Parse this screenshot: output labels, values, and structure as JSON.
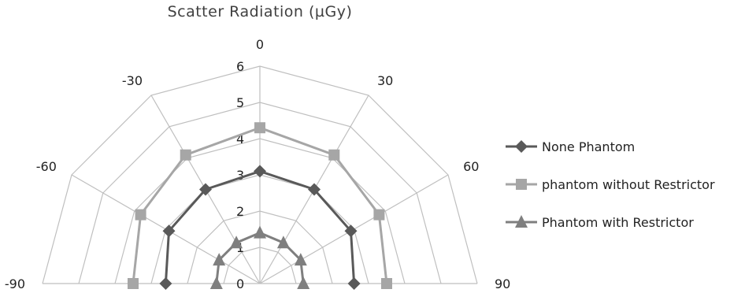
{
  "chart_data": {
    "type": "radar",
    "title": "Scatter Radiation (µGy)",
    "angles": [
      -90,
      -60,
      -30,
      0,
      30,
      60,
      90
    ],
    "angle_labels": [
      "-90",
      "-60",
      "-30",
      "0",
      "30",
      "60",
      "90"
    ],
    "radial_ticks": [
      "0",
      "1",
      "2",
      "3",
      "4",
      "5",
      "6"
    ],
    "rlim": [
      0,
      6
    ],
    "series": [
      {
        "name": "None Phantom",
        "marker": "diamond",
        "color": "#595959",
        "values": [
          2.6,
          2.9,
          3.0,
          3.1,
          3.0,
          2.9,
          2.6
        ]
      },
      {
        "name": "phantom without Restrictor",
        "marker": "square",
        "color": "#a6a6a6",
        "values": [
          3.5,
          3.8,
          4.1,
          4.3,
          4.1,
          3.8,
          3.5
        ]
      },
      {
        "name": "Phantom with Restrictor",
        "marker": "triangle",
        "color": "#7f7f7f",
        "values": [
          1.2,
          1.3,
          1.3,
          1.4,
          1.3,
          1.3,
          1.2
        ]
      }
    ],
    "legend_position": "right",
    "grid": true
  }
}
